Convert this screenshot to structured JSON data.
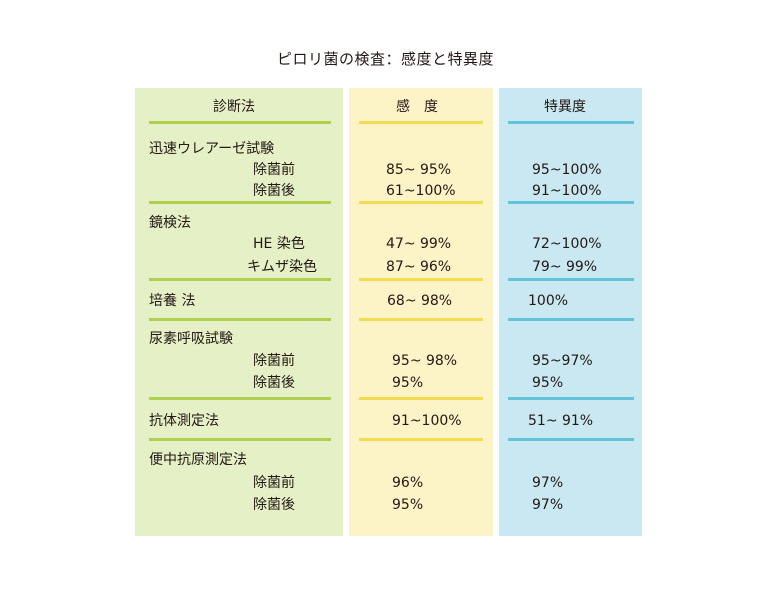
{
  "title": "ピロリ菌の検査：感度と特異度",
  "headers": {
    "method": "診断法",
    "sensitivity": "感　度",
    "specificity": "特異度"
  },
  "groups": [
    {
      "name": "迅速ウレアーゼ試験",
      "value": "",
      "spec": "",
      "sub": [
        {
          "label": "除菌前",
          "value": "85~ 95%",
          "spec": "95~100%"
        },
        {
          "label": "除菌後",
          "value": "61~100%",
          "spec": "91~100%"
        }
      ]
    },
    {
      "name": "鏡検法",
      "value": "",
      "spec": "",
      "sub": [
        {
          "label": "HE 染色",
          "value": "47~ 99%",
          "spec": "72~100%"
        },
        {
          "label": "キムザ染色",
          "value": "87~ 96%",
          "spec": "79~ 99%"
        }
      ]
    },
    {
      "name": "培養 法",
      "value": "68~ 98%",
      "spec": "100%",
      "sub": []
    },
    {
      "name": "尿素呼吸試験",
      "value": "",
      "spec": "",
      "sub": [
        {
          "label": "除菌前",
          "value": "95~ 98%",
          "spec": "95~97%"
        },
        {
          "label": "除菌後",
          "value": "95%",
          "spec": "95%"
        }
      ]
    },
    {
      "name": "抗体測定法",
      "value": "91~100%",
      "spec": "51~ 91%",
      "sub": []
    },
    {
      "name": "便中抗原測定法",
      "value": "",
      "spec": "",
      "sub": [
        {
          "label": "除菌前",
          "value": "96%",
          "spec": "97%"
        },
        {
          "label": "除菌後",
          "value": "95%",
          "spec": "97%"
        }
      ]
    }
  ]
}
